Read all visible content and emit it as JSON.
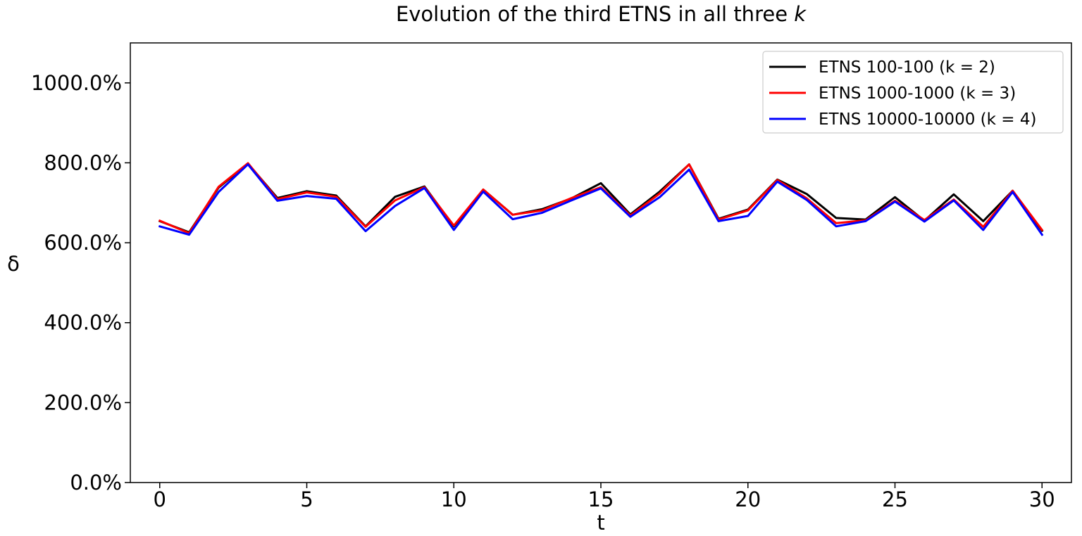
{
  "chart_data": {
    "type": "line",
    "title_main": "Evolution of the third ETNS in all three ",
    "title_var": "k",
    "xlabel": "t",
    "ylabel": "δ",
    "xlim": [
      -1,
      31
    ],
    "ylim": [
      0,
      1100
    ],
    "x_ticks": [
      0,
      5,
      10,
      15,
      20,
      25,
      30
    ],
    "y_ticks": [
      0,
      200,
      400,
      600,
      800,
      1000
    ],
    "y_tick_labels": [
      "0.0%",
      "200.0%",
      "400.0%",
      "600.0%",
      "800.0%",
      "1000.0%"
    ],
    "x": [
      0,
      1,
      2,
      3,
      4,
      5,
      6,
      7,
      8,
      9,
      10,
      11,
      12,
      13,
      14,
      15,
      16,
      17,
      18,
      19,
      20,
      21,
      22,
      23,
      24,
      25,
      26,
      27,
      28,
      29,
      30
    ],
    "legend_position": "upper-right",
    "grid": false,
    "series": [
      {
        "name": "ETNS 100-100 (k = 2)",
        "color": "#000000",
        "values": [
          654,
          626,
          738,
          798,
          712,
          729,
          718,
          641,
          715,
          741,
          641,
          733,
          670,
          684,
          711,
          749,
          671,
          728,
          796,
          660,
          683,
          758,
          722,
          662,
          658,
          714,
          655,
          721,
          654,
          730,
          630
        ]
      },
      {
        "name": "ETNS 1000-1000 (k = 3)",
        "color": "#ff0000",
        "values": [
          655,
          624,
          740,
          799,
          709,
          726,
          715,
          640,
          706,
          739,
          643,
          733,
          670,
          681,
          712,
          739,
          668,
          723,
          796,
          658,
          681,
          757,
          711,
          649,
          656,
          705,
          657,
          708,
          640,
          730,
          632
        ]
      },
      {
        "name": "ETNS 10000-10000 (k = 4)",
        "color": "#0000ff",
        "values": [
          641,
          620,
          727,
          796,
          705,
          717,
          710,
          629,
          692,
          737,
          632,
          728,
          659,
          675,
          706,
          736,
          665,
          714,
          783,
          654,
          667,
          753,
          707,
          641,
          654,
          703,
          653,
          706,
          632,
          727,
          620
        ]
      }
    ]
  }
}
